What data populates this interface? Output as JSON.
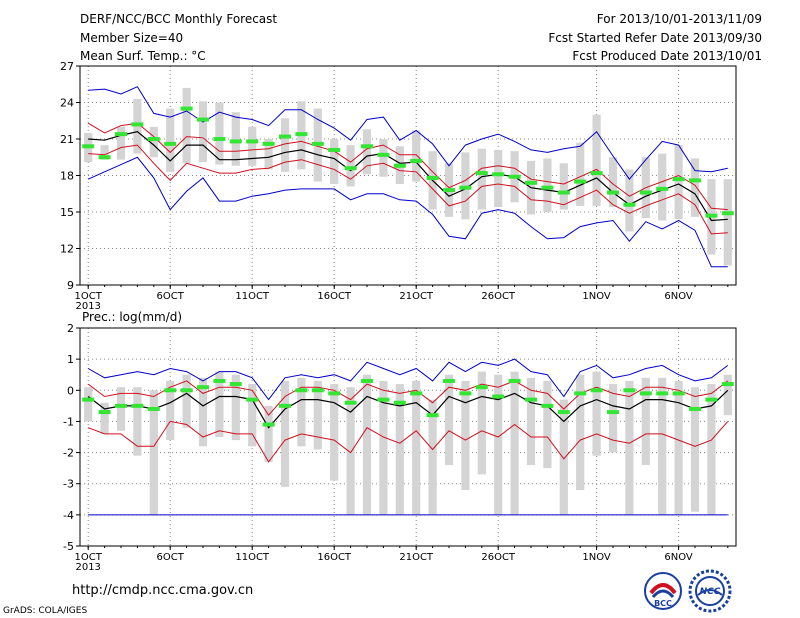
{
  "header": {
    "title": "DERF/NCC/BCC Monthly Forecast",
    "member_size": "Member Size=40",
    "variable": "Mean Surf. Temp.: °C",
    "period": "For 2013/10/01-2013/11/09",
    "refer_date": "Fcst Started Refer Date 2013/09/30",
    "produced_date": "Fcst Produced Date 2013/10/01"
  },
  "footer": {
    "url": "http://cmdp.ncc.cma.gov.cn",
    "grads": "GrADS: COLA/IGES",
    "logo_bcc_text": "BCC",
    "logo_ncc_text": "NCC"
  },
  "colors": {
    "box": "#d4d4d4",
    "mean": "#000000",
    "sd": "#d0101e",
    "extreme": "#0000cc",
    "obs_green": "#33e633",
    "grid": "#888888"
  },
  "chart_data": [
    {
      "type": "box-line",
      "name_label": "",
      "x_ticks": [
        "1OCT",
        "6OCT",
        "11OCT",
        "16OCT",
        "21OCT",
        "26OCT",
        "1NOV",
        "6NOV"
      ],
      "x_tick_days": [
        1,
        6,
        11,
        16,
        21,
        26,
        32,
        37
      ],
      "x_year": "2013",
      "x_range": [
        0.5,
        40.5
      ],
      "ylim": [
        9,
        27
      ],
      "y_ticks": [
        9,
        12,
        15,
        18,
        21,
        24,
        27
      ],
      "grid": true,
      "days": [
        1,
        2,
        3,
        4,
        5,
        6,
        7,
        8,
        9,
        10,
        11,
        12,
        13,
        14,
        15,
        16,
        17,
        18,
        19,
        20,
        21,
        22,
        23,
        24,
        25,
        26,
        27,
        28,
        29,
        30,
        31,
        32,
        33,
        34,
        35,
        36,
        37,
        38,
        39,
        40
      ],
      "mean": [
        21.0,
        20.9,
        21.3,
        21.6,
        20.5,
        19.2,
        20.5,
        20.5,
        19.3,
        19.3,
        19.4,
        19.5,
        19.9,
        20.1,
        19.7,
        19.4,
        18.4,
        19.6,
        19.8,
        19.0,
        19.1,
        17.6,
        16.3,
        16.9,
        17.9,
        18.1,
        17.9,
        17.0,
        16.8,
        16.6,
        17.2,
        17.8,
        16.6,
        15.6,
        16.3,
        16.8,
        17.3,
        16.5,
        14.3,
        14.4
      ],
      "upper_sd": [
        22.3,
        21.5,
        22.1,
        22.3,
        21.2,
        19.9,
        21.2,
        21.1,
        20.0,
        20.0,
        20.1,
        20.2,
        20.6,
        20.8,
        20.4,
        20.0,
        19.1,
        20.2,
        20.5,
        19.7,
        19.7,
        18.3,
        17.0,
        17.6,
        18.6,
        18.8,
        18.6,
        17.7,
        17.5,
        17.3,
        17.9,
        18.5,
        17.3,
        16.3,
        17.0,
        17.5,
        18.0,
        17.2,
        15.3,
        15.2
      ],
      "lower_sd": [
        19.8,
        19.7,
        20.3,
        20.5,
        19.0,
        17.6,
        19.0,
        18.6,
        18.2,
        18.2,
        18.5,
        18.6,
        19.1,
        19.3,
        18.9,
        18.5,
        17.7,
        18.8,
        19.0,
        18.4,
        18.3,
        16.9,
        15.5,
        15.9,
        17.1,
        17.3,
        17.1,
        16.0,
        15.9,
        15.6,
        16.2,
        16.8,
        15.6,
        14.9,
        15.5,
        16.0,
        16.5,
        15.6,
        13.2,
        13.3
      ],
      "max": [
        25.0,
        25.1,
        24.7,
        25.3,
        23.1,
        22.8,
        23.3,
        22.4,
        23.2,
        22.8,
        22.6,
        22.1,
        23.4,
        23.4,
        22.6,
        21.9,
        20.9,
        22.6,
        22.8,
        20.9,
        21.7,
        20.6,
        18.8,
        20.5,
        21.0,
        21.4,
        20.8,
        20.1,
        19.9,
        20.2,
        20.4,
        21.6,
        19.6,
        17.7,
        19.3,
        20.8,
        20.5,
        18.4,
        18.3,
        18.6
      ],
      "min": [
        17.7,
        18.3,
        18.9,
        19.5,
        17.8,
        15.2,
        16.7,
        17.8,
        15.9,
        15.9,
        16.3,
        16.5,
        16.8,
        16.9,
        16.9,
        16.9,
        16.0,
        16.5,
        16.5,
        16.0,
        15.9,
        14.8,
        13.0,
        12.8,
        14.9,
        15.2,
        14.9,
        13.8,
        12.8,
        12.9,
        13.8,
        14.1,
        14.3,
        12.6,
        14.2,
        13.6,
        14.3,
        13.5,
        10.5,
        10.5
      ],
      "box_top": [
        21.5,
        20.5,
        22.0,
        24.3,
        22.0,
        23.5,
        25.2,
        24.1,
        24.0,
        23.2,
        22.0,
        21.0,
        22.7,
        24.1,
        23.5,
        21.0,
        20.5,
        21.8,
        21.0,
        20.4,
        21.7,
        20.0,
        19.0,
        19.9,
        20.2,
        20.1,
        20.0,
        19.2,
        19.4,
        19.0,
        20.7,
        23.0,
        19.5,
        18.5,
        19.5,
        19.8,
        20.5,
        19.4,
        17.7,
        17.7
      ],
      "box_bottom": [
        19.1,
        19.3,
        19.3,
        19.8,
        19.5,
        18.3,
        19.0,
        19.1,
        18.9,
        18.8,
        18.8,
        18.5,
        18.3,
        18.5,
        17.5,
        17.3,
        17.1,
        18.1,
        17.9,
        17.3,
        17.5,
        15.2,
        14.6,
        14.4,
        15.2,
        15.4,
        15.8,
        14.8,
        15.0,
        15.2,
        15.5,
        15.5,
        15.4,
        13.4,
        14.5,
        14.3,
        14.4,
        14.6,
        11.5,
        10.6
      ],
      "obs": [
        20.4,
        19.5,
        21.4,
        22.2,
        21.0,
        20.6,
        23.5,
        22.6,
        21.0,
        20.8,
        20.8,
        20.6,
        21.2,
        21.4,
        20.6,
        20.1,
        18.6,
        20.4,
        19.7,
        18.8,
        19.2,
        17.8,
        16.8,
        17.0,
        18.2,
        18.1,
        17.9,
        17.4,
        17.0,
        16.6,
        17.5,
        18.2,
        16.6,
        15.6,
        16.6,
        16.9,
        17.7,
        17.6,
        14.7,
        14.9
      ]
    },
    {
      "type": "box-line",
      "name_label": "Prec.: log(mm/d)",
      "x_ticks": [
        "1OCT",
        "6OCT",
        "11OCT",
        "16OCT",
        "21OCT",
        "26OCT",
        "1NOV",
        "6NOV"
      ],
      "x_tick_days": [
        1,
        6,
        11,
        16,
        21,
        26,
        32,
        37
      ],
      "x_year": "2013",
      "x_range": [
        0.5,
        40.5
      ],
      "ylim": [
        -5,
        2
      ],
      "y_ticks": [
        -5,
        -4,
        -3,
        -2,
        -1,
        0,
        1,
        2
      ],
      "grid": true,
      "days": [
        1,
        2,
        3,
        4,
        5,
        6,
        7,
        8,
        9,
        10,
        11,
        12,
        13,
        14,
        15,
        16,
        17,
        18,
        19,
        20,
        21,
        22,
        23,
        24,
        25,
        26,
        27,
        28,
        29,
        30,
        31,
        32,
        33,
        34,
        35,
        36,
        37,
        38,
        39,
        40
      ],
      "mean": [
        -0.2,
        -0.6,
        -0.5,
        -0.5,
        -0.6,
        -0.4,
        -0.1,
        -0.5,
        -0.2,
        -0.2,
        -0.3,
        -1.2,
        -0.6,
        -0.3,
        -0.3,
        -0.4,
        -0.7,
        -0.2,
        -0.4,
        -0.5,
        -0.4,
        -0.8,
        -0.2,
        -0.4,
        -0.2,
        -0.3,
        -0.1,
        -0.4,
        -0.5,
        -1.0,
        -0.5,
        -0.3,
        -0.5,
        -0.6,
        -0.3,
        -0.3,
        -0.4,
        -0.6,
        -0.5,
        0.0
      ],
      "upper_sd": [
        0.2,
        -0.2,
        -0.1,
        -0.1,
        -0.2,
        0.1,
        0.3,
        -0.1,
        0.1,
        0.1,
        0.0,
        -0.8,
        -0.2,
        0.1,
        0.1,
        0.0,
        -0.3,
        0.2,
        0.0,
        -0.1,
        0.0,
        -0.4,
        0.1,
        0.0,
        0.2,
        0.1,
        0.3,
        0.0,
        -0.1,
        -0.6,
        -0.1,
        0.1,
        -0.1,
        -0.2,
        0.1,
        0.1,
        0.0,
        -0.2,
        -0.1,
        0.3
      ],
      "lower_sd": [
        -1.2,
        -1.4,
        -1.4,
        -1.8,
        -1.8,
        -1.0,
        -1.1,
        -1.5,
        -1.3,
        -1.4,
        -1.4,
        -2.3,
        -1.6,
        -1.4,
        -1.5,
        -1.6,
        -2.0,
        -1.2,
        -1.5,
        -1.7,
        -1.3,
        -1.9,
        -1.3,
        -1.6,
        -1.3,
        -1.5,
        -1.1,
        -1.5,
        -1.5,
        -2.2,
        -1.6,
        -1.4,
        -1.6,
        -1.7,
        -1.4,
        -1.4,
        -1.6,
        -1.8,
        -1.6,
        -1.0
      ],
      "max": [
        0.7,
        0.4,
        0.5,
        0.6,
        0.5,
        0.7,
        0.6,
        0.3,
        0.6,
        0.6,
        0.4,
        -0.3,
        0.4,
        0.5,
        0.4,
        0.5,
        0.3,
        0.9,
        0.7,
        0.5,
        0.7,
        0.3,
        0.9,
        0.6,
        0.9,
        0.8,
        1.0,
        0.6,
        0.5,
        -0.2,
        0.6,
        0.8,
        0.4,
        0.5,
        0.7,
        0.8,
        0.5,
        0.3,
        0.4,
        0.8
      ],
      "min": [
        -4.0,
        -4.0,
        -4.0,
        -4.0,
        -4.0,
        -4.0,
        -4.0,
        -4.0,
        -4.0,
        -4.0,
        -4.0,
        -4.0,
        -4.0,
        -4.0,
        -4.0,
        -4.0,
        -4.0,
        -4.0,
        -4.0,
        -4.0,
        -4.0,
        -4.0,
        -4.0,
        -4.0,
        -4.0,
        -4.0,
        -4.0,
        -4.0,
        -4.0,
        -4.0,
        -4.0,
        -4.0,
        -4.0,
        -4.0,
        -4.0,
        -4.0,
        -4.0,
        -4.0,
        -4.0,
        -4.0
      ],
      "box_top": [
        0.1,
        -0.4,
        0.1,
        0.1,
        0.0,
        0.3,
        0.5,
        0.4,
        0.6,
        0.5,
        0.2,
        -0.5,
        0.3,
        0.4,
        0.3,
        0.2,
        0.1,
        0.5,
        0.3,
        0.2,
        0.3,
        -0.3,
        0.5,
        0.3,
        0.6,
        0.5,
        0.6,
        0.4,
        0.3,
        -0.3,
        0.5,
        0.6,
        0.2,
        0.3,
        0.4,
        0.4,
        0.3,
        0.1,
        0.2,
        0.5
      ],
      "box_bottom": [
        -1.0,
        -1.4,
        -1.3,
        -2.1,
        -4.0,
        -1.6,
        -1.2,
        -1.8,
        -1.5,
        -1.6,
        -1.8,
        -2.3,
        -3.1,
        -1.8,
        -1.9,
        -2.9,
        -4.0,
        -4.0,
        -4.0,
        -4.0,
        -4.0,
        -4.0,
        -2.4,
        -3.2,
        -2.7,
        -4.0,
        -4.0,
        -2.4,
        -2.5,
        -4.0,
        -3.2,
        -2.1,
        -2.0,
        -4.0,
        -2.4,
        -4.0,
        -4.0,
        -3.9,
        -4.0,
        -0.8
      ],
      "obs": [
        -0.3,
        -0.7,
        -0.5,
        -0.5,
        -0.6,
        0.0,
        0.0,
        0.1,
        0.3,
        0.2,
        -0.3,
        -1.1,
        -0.5,
        0.0,
        0.0,
        -0.1,
        -0.4,
        0.3,
        -0.3,
        -0.4,
        -0.1,
        -0.8,
        0.3,
        -0.1,
        0.1,
        -0.2,
        0.3,
        -0.3,
        -0.5,
        -0.7,
        -0.1,
        0.0,
        -0.7,
        0.0,
        -0.1,
        -0.1,
        -0.1,
        -0.6,
        -0.3,
        0.2
      ]
    }
  ]
}
